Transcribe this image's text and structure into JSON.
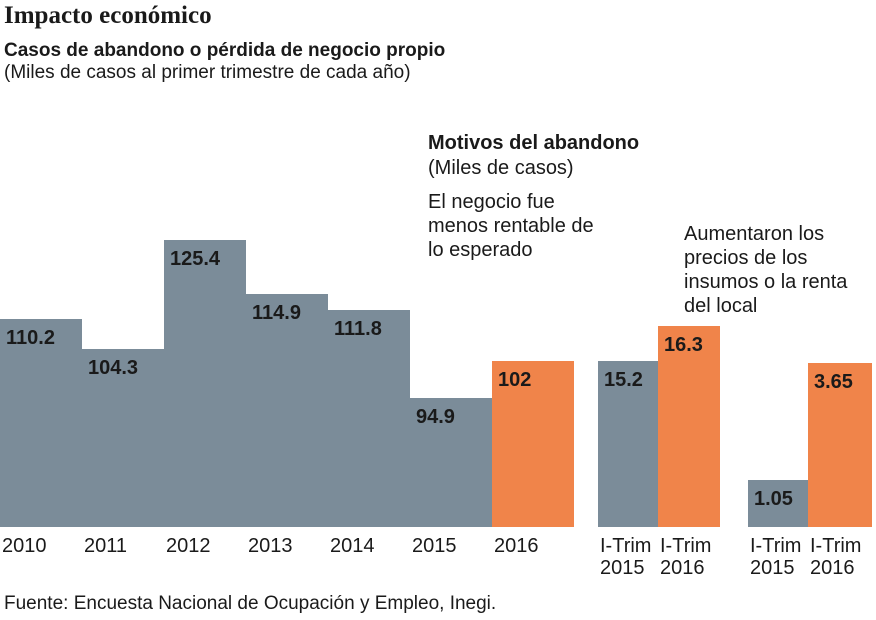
{
  "chart_data": [
    {
      "type": "bar",
      "title": "Impacto económico",
      "subtitle": "Casos de abandono o pérdida de negocio propio",
      "note": "(Miles de casos al primer trimestre de cada año)",
      "categories": [
        "2010",
        "2011",
        "2012",
        "2013",
        "2014",
        "2015",
        "2016"
      ],
      "values": [
        110.2,
        104.3,
        125.4,
        114.9,
        111.8,
        94.9,
        102
      ],
      "colors": [
        "#7b8c99",
        "#7b8c99",
        "#7b8c99",
        "#7b8c99",
        "#7b8c99",
        "#7b8c99",
        "#f0844a"
      ],
      "ylim": [
        70,
        130
      ],
      "source": "Fuente: Encuesta Nacional de Ocupación y Empleo, Inegi."
    },
    {
      "type": "bar",
      "title": "Motivos del abandono",
      "subtitle": "(Miles de casos)",
      "annotation": "El negocio fue menos rentable de lo esperado",
      "categories": [
        "I-Trim 2015",
        "I-Trim 2016"
      ],
      "values": [
        15.2,
        16.3
      ],
      "colors": [
        "#7b8c99",
        "#f0844a"
      ],
      "ylim": [
        10,
        17
      ]
    },
    {
      "type": "bar",
      "annotation": "Aumentaron los precios de los insumos o la renta del local",
      "categories": [
        "I-Trim 2015",
        "I-Trim 2016"
      ],
      "values": [
        1.05,
        3.65
      ],
      "colors": [
        "#7b8c99",
        "#f0844a"
      ],
      "ylim": [
        0,
        4
      ]
    }
  ]
}
